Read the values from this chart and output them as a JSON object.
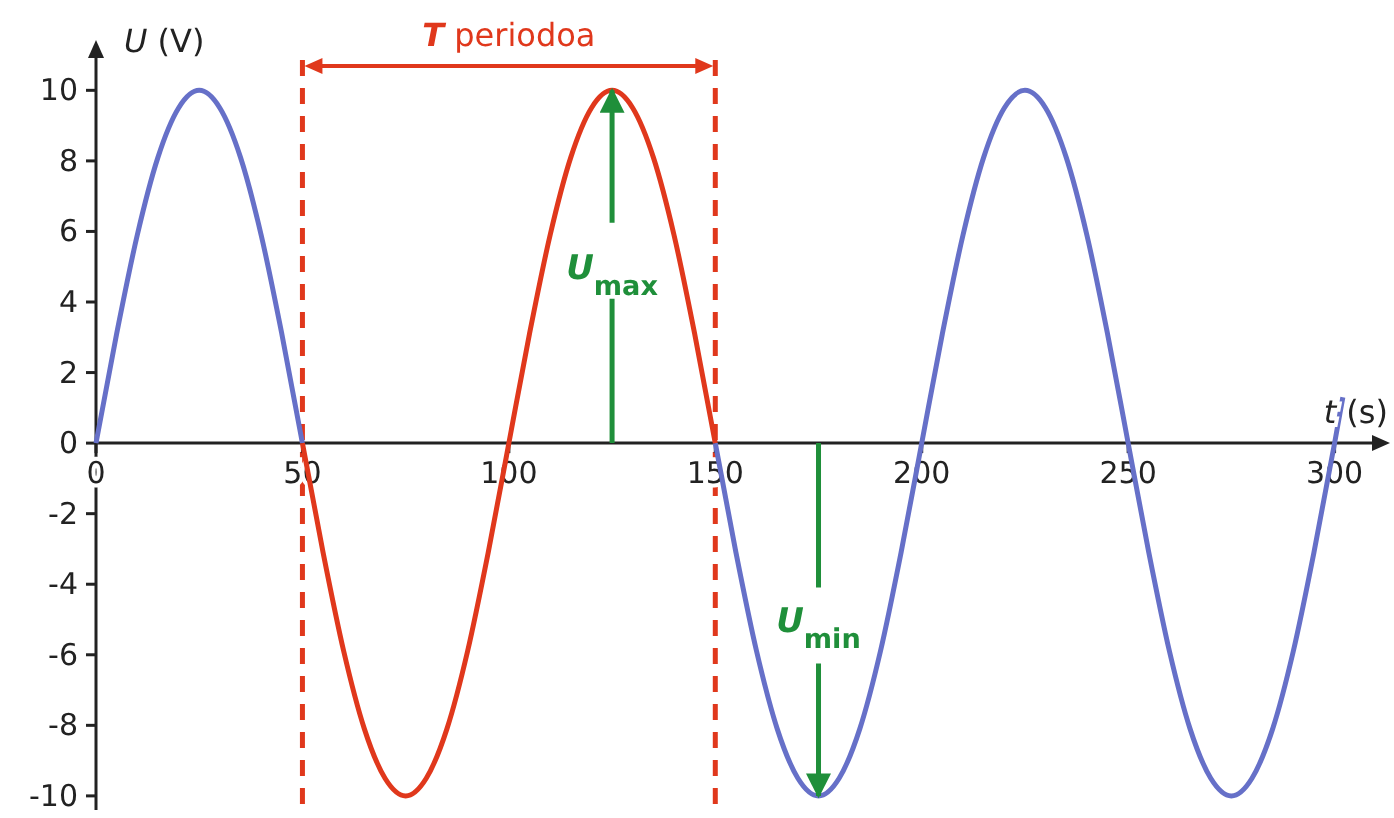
{
  "chart_data": {
    "type": "line",
    "xlabel": "t (s)",
    "ylabel": "U (V)",
    "xlim": [
      0,
      311
    ],
    "ylim": [
      -10.4,
      11.2
    ],
    "xticks": [
      0,
      50,
      100,
      150,
      200,
      250,
      300
    ],
    "yticks": [
      -10,
      -8,
      -6,
      -4,
      -2,
      0,
      2,
      4,
      6,
      8,
      10
    ],
    "x": [
      0,
      5,
      10,
      15,
      20,
      25,
      30,
      35,
      40,
      45,
      50,
      55,
      60,
      65,
      70,
      75,
      80,
      85,
      90,
      95,
      100,
      105,
      110,
      115,
      120,
      125,
      130,
      135,
      140,
      145,
      150,
      155,
      160,
      165,
      170,
      175,
      180,
      185,
      190,
      195,
      200,
      205,
      210,
      215,
      220,
      225,
      230,
      235,
      240,
      245,
      250,
      255,
      260,
      265,
      270,
      275,
      280,
      285,
      290,
      295,
      300,
      302
    ],
    "series": [
      {
        "color": "#6670c8",
        "values": [
          0,
          3.1,
          5.9,
          8.1,
          9.5,
          10,
          9.5,
          8.1,
          5.9,
          3.1,
          0,
          null,
          null,
          null,
          null,
          null,
          null,
          null,
          null,
          null,
          null,
          null,
          null,
          null,
          null,
          null,
          null,
          null,
          null,
          null,
          0,
          -3.1,
          -5.9,
          -8.1,
          -9.5,
          -10,
          -9.5,
          -8.1,
          -5.9,
          -3.1,
          0,
          3.1,
          5.9,
          8.1,
          9.5,
          10,
          9.5,
          8.1,
          5.9,
          3.1,
          0,
          -3.1,
          -5.9,
          -8.1,
          -9.5,
          -10,
          -9.5,
          -8.1,
          -5.9,
          -3.1,
          0,
          1.3
        ]
      },
      {
        "color": "#e0381c",
        "values": [
          null,
          null,
          null,
          null,
          null,
          null,
          null,
          null,
          null,
          null,
          0,
          -3.1,
          -5.9,
          -8.1,
          -9.5,
          -10,
          -9.5,
          -8.1,
          -5.9,
          -3.1,
          0,
          3.1,
          5.9,
          8.1,
          9.5,
          10,
          9.5,
          8.1,
          5.9,
          3.1,
          0,
          null,
          null,
          null,
          null,
          null,
          null,
          null,
          null,
          null,
          null,
          null,
          null,
          null,
          null,
          null,
          null,
          null,
          null,
          null,
          null,
          null,
          null,
          null,
          null,
          null,
          null,
          null,
          null,
          null,
          null,
          null
        ]
      }
    ],
    "ref_lines": [
      {
        "axis": "x",
        "value": 50,
        "color": "#e0381c",
        "line_style": "dashed"
      },
      {
        "axis": "x",
        "value": 150,
        "color": "#e0381c",
        "line_style": "dashed"
      }
    ],
    "annotations": [
      "T periodoa",
      {
        "text": "U$_{max}$",
        "x": 125,
        "y": 10
      },
      {
        "text": "U$_{min}$",
        "x": 175,
        "y": -10
      }
    ],
    "grid": false,
    "marker": "none",
    "line_style": "solid"
  }
}
